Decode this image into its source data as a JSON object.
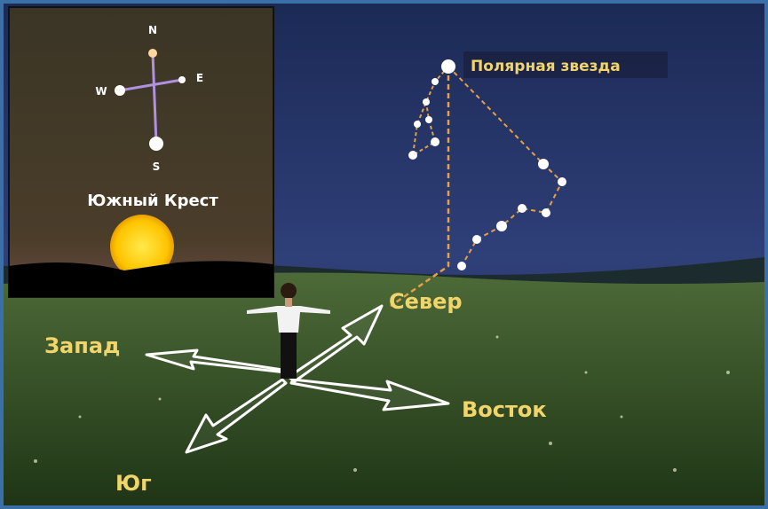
{
  "inset": {
    "north": "N",
    "east": "E",
    "west": "W",
    "south": "S",
    "caption": "Южный Крест"
  },
  "sky": {
    "pole_star": "Полярная звезда"
  },
  "directions": {
    "north": "Север",
    "west": "Запад",
    "east": "Восток",
    "south": "Юг"
  }
}
